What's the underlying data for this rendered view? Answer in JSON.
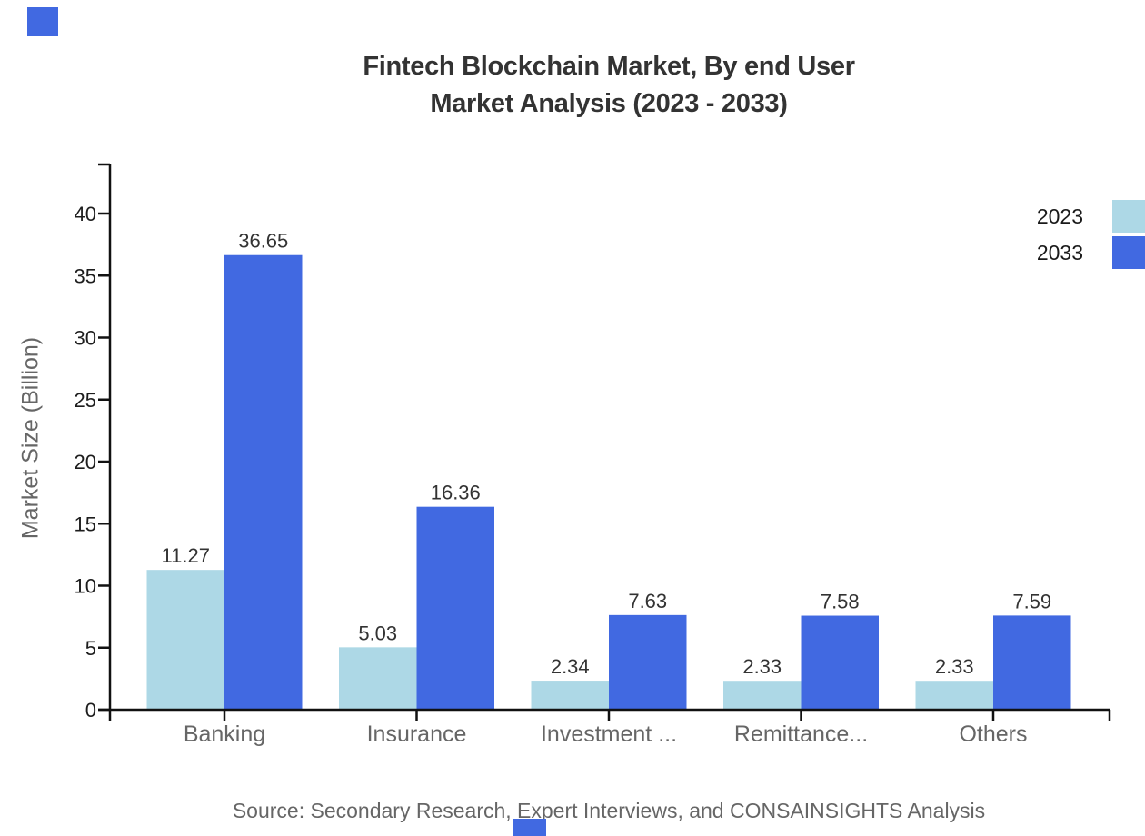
{
  "title": {
    "line1": "Fintech Blockchain Market, By end User",
    "line2": "Market Analysis (2023 - 2033)"
  },
  "source_note": "Source: Secondary Research, Expert Interviews, and CONSAINSIGHTS Analysis",
  "colors": {
    "accent": "#4169E1",
    "bar_2023": "#ADD8E6",
    "bar_2033": "#4169E1",
    "title": "#333333",
    "axis": "#111111",
    "tick_label": "#1d1d1d",
    "value_label": "#333333",
    "category_label": "#666666",
    "muted": "#666666"
  },
  "chart_data": {
    "type": "bar",
    "title": "Fintech Blockchain Market, By end User Market Analysis (2023 - 2033)",
    "categories": [
      "Banking",
      "Insurance",
      "Investment ...",
      "Remittance...",
      "Others"
    ],
    "series": [
      {
        "name": "2023",
        "color": "#ADD8E6",
        "values": [
          11.27,
          5.03,
          2.34,
          2.33,
          2.33
        ]
      },
      {
        "name": "2033",
        "color": "#4169E1",
        "values": [
          36.65,
          16.36,
          7.63,
          7.58,
          7.59
        ]
      }
    ],
    "xlabel": "",
    "ylabel": "Market Size (Billion)",
    "yticks": [
      0,
      5,
      10,
      15,
      20,
      25,
      30,
      35,
      40
    ],
    "ylim": [
      0,
      44
    ],
    "grid": false,
    "legend_position": "top-right",
    "bar_value_labels": true,
    "value_label_format": "2-decimals"
  }
}
